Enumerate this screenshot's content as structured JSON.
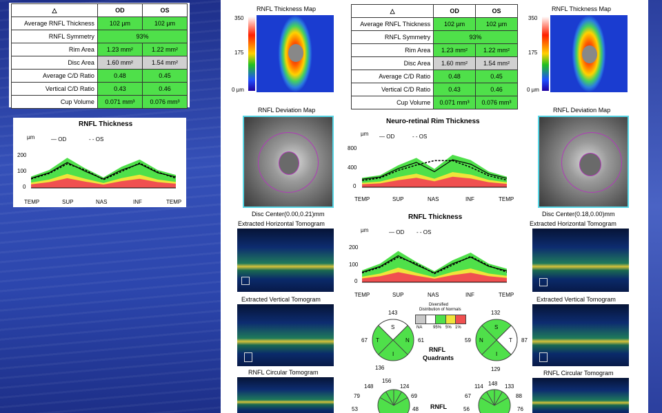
{
  "table": {
    "col_od": "OD",
    "col_os": "OS",
    "rows": [
      {
        "label": "Average RNFL Thickness",
        "od": "102 µm",
        "os": "102 µm"
      },
      {
        "label": "RNFL Symmetry",
        "both": "93%"
      },
      {
        "label": "Rim Area",
        "od": "1.23 mm²",
        "os": "1.22 mm²"
      },
      {
        "label": "Disc Area",
        "od": "1.60 mm²",
        "os": "1.54 mm²"
      },
      {
        "label": "Average C/D Ratio",
        "od": "0.48",
        "os": "0.45"
      },
      {
        "label": "Vertical C/D Ratio",
        "od": "0.43",
        "os": "0.46"
      },
      {
        "label": "Cup Volume",
        "od": "0.071 mm³",
        "os": "0.076 mm³"
      }
    ]
  },
  "left_chart": {
    "title": "RNFL Thickness",
    "unit": "µm",
    "legend_od": "OD",
    "legend_os": "OS",
    "yticks": [
      "200",
      "100",
      "0"
    ],
    "xticks": [
      "TEMP",
      "SUP",
      "NAS",
      "INF",
      "TEMP"
    ]
  },
  "rim_chart": {
    "title": "Neuro-retinal Rim Thickness",
    "unit": "µm",
    "legend_od": "OD",
    "legend_os": "OS",
    "yticks": [
      "800",
      "400",
      "0"
    ],
    "xticks": [
      "TEMP",
      "SUP",
      "NAS",
      "INF",
      "TEMP"
    ]
  },
  "rnfl_chart": {
    "title": "RNFL Thickness",
    "unit": "µm",
    "legend_od": "OD",
    "legend_os": "OS",
    "yticks": [
      "200",
      "100",
      "0"
    ],
    "xticks": [
      "TEMP",
      "SUP",
      "NAS",
      "INF",
      "TEMP"
    ]
  },
  "maps": {
    "thickness_title": "RNFL Thickness Map",
    "scale_top": "350",
    "scale_mid": "175",
    "scale_bot": "0 µm",
    "deviation_title": "RNFL Deviation Map",
    "disc_center_od": "Disc Center(0.00,0.21)mm",
    "disc_center_os": "Disc Center(0.18,0.00)mm",
    "horiz_title": "Extracted Horizontal Tomogram",
    "vert_title": "Extracted Vertical Tomogram",
    "circ_title": "RNFL Circular Tomogram"
  },
  "quadrants": {
    "title_line1": "RNFL",
    "title_line2": "Quadrants",
    "legend_title_1": "Diversified",
    "legend_title_2": "Distribution of Normals",
    "legend_labels": [
      "NA",
      "95%",
      "5%",
      "1%"
    ],
    "od": {
      "top": "143",
      "left": "67",
      "right": "61",
      "bottom": "136",
      "S": "S",
      "T": "T",
      "N": "N",
      "I": "I"
    },
    "os": {
      "top": "132",
      "left": "59",
      "right": "87",
      "bottom": "129",
      "S": "S",
      "T": "T",
      "N": "N",
      "I": "I"
    }
  },
  "clock": {
    "title": "RNFL",
    "od": [
      "148",
      "156",
      "124",
      "79",
      "69",
      "53",
      "48"
    ],
    "os": [
      "114",
      "148",
      "133",
      "67",
      "88",
      "56",
      "76"
    ]
  },
  "chart_data": [
    {
      "type": "line",
      "title": "RNFL Thickness",
      "ylabel": "µm",
      "ylim": [
        0,
        250
      ],
      "categories": [
        "TEMP",
        "SUP",
        "NAS",
        "INF",
        "TEMP"
      ],
      "x": [
        0,
        0.125,
        0.25,
        0.375,
        0.5,
        0.625,
        0.75,
        0.875,
        1
      ],
      "series": [
        {
          "name": "OD",
          "values": [
            70,
            110,
            185,
            120,
            65,
            130,
            175,
            110,
            80
          ]
        },
        {
          "name": "OS",
          "values": [
            65,
            105,
            175,
            130,
            60,
            120,
            180,
            115,
            70
          ]
        }
      ]
    },
    {
      "type": "line",
      "title": "Neuro-retinal Rim Thickness",
      "ylabel": "µm",
      "ylim": [
        0,
        900
      ],
      "categories": [
        "TEMP",
        "SUP",
        "NAS",
        "INF",
        "TEMP"
      ],
      "x": [
        0,
        0.125,
        0.25,
        0.375,
        0.5,
        0.625,
        0.75,
        0.875,
        1
      ],
      "series": [
        {
          "name": "OD",
          "values": [
            180,
            230,
            420,
            560,
            350,
            620,
            520,
            300,
            200
          ]
        },
        {
          "name": "OS",
          "values": [
            150,
            210,
            380,
            500,
            600,
            600,
            450,
            260,
            160
          ]
        }
      ]
    },
    {
      "type": "line",
      "title": "RNFL Thickness",
      "ylabel": "µm",
      "ylim": [
        0,
        250
      ],
      "categories": [
        "TEMP",
        "SUP",
        "NAS",
        "INF",
        "TEMP"
      ],
      "x": [
        0,
        0.125,
        0.25,
        0.375,
        0.5,
        0.625,
        0.75,
        0.875,
        1
      ],
      "series": [
        {
          "name": "OD",
          "values": [
            70,
            110,
            185,
            120,
            65,
            130,
            175,
            110,
            80
          ]
        },
        {
          "name": "OS",
          "values": [
            65,
            105,
            175,
            130,
            60,
            120,
            180,
            115,
            70
          ]
        }
      ]
    }
  ]
}
